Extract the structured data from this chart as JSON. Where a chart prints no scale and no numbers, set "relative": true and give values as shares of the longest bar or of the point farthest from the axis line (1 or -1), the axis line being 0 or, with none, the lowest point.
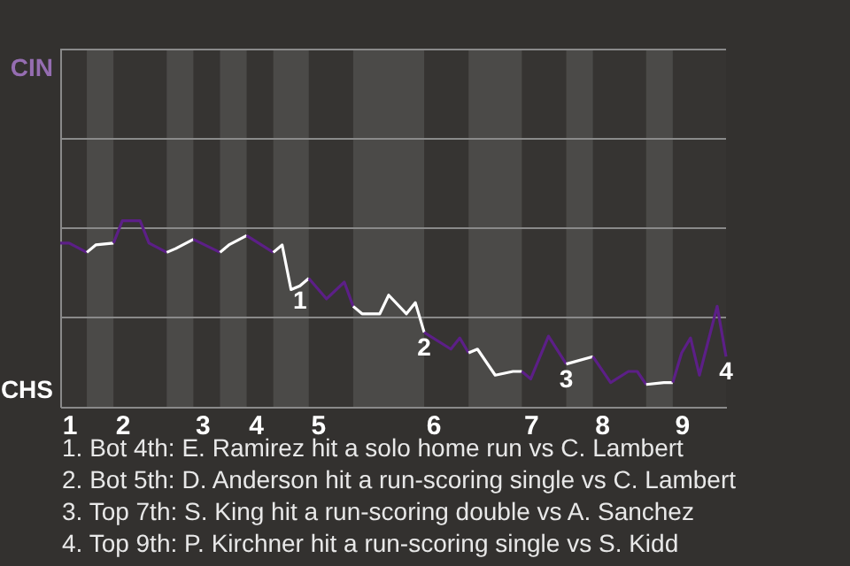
{
  "chart_data": {
    "type": "line",
    "relative": true,
    "categories": [
      null,
      "1",
      null,
      null,
      null,
      null,
      null,
      "2",
      null,
      null,
      null,
      null,
      null,
      null,
      null,
      null,
      "3",
      null,
      null,
      null,
      null,
      null,
      "4",
      null,
      null,
      null,
      null,
      null,
      null,
      "5",
      null,
      null,
      null,
      null,
      null,
      null,
      null,
      null,
      null,
      null,
      null,
      null,
      "6",
      null,
      null,
      null,
      null,
      null,
      null,
      null,
      null,
      null,
      null,
      "7",
      null,
      null,
      null,
      null,
      null,
      null,
      null,
      "8",
      null,
      null,
      null,
      null,
      null,
      null,
      null,
      null,
      "9",
      null,
      null,
      null,
      null,
      null
    ],
    "ref_lines": [
      {
        "axis": "y",
        "value": 0.48,
        "color": "#8a8a8a"
      },
      {
        "axis": "y",
        "value": 0.96,
        "color": "#8a8a8a"
      },
      {
        "axis": "y",
        "value": 1.44,
        "color": "#8a8a8a"
      },
      {
        "axis": "y",
        "value": 1.92,
        "color": "#8a8a8a"
      }
    ],
    "series": [
      {
        "color": "#5c1f87",
        "values": [
          0.88,
          0.88,
          null,
          0.83,
          null,
          null,
          null,
          null,
          null,
          null,
          null,
          null,
          null,
          null,
          null,
          null,
          null,
          null,
          null,
          null,
          null,
          null,
          null,
          null,
          null,
          null,
          null,
          null,
          null,
          null,
          null,
          null,
          null,
          null,
          null,
          null,
          null,
          null,
          null,
          null,
          null,
          null,
          null,
          null,
          null,
          null,
          null,
          null,
          null,
          null,
          null,
          null,
          null,
          null,
          null,
          null,
          null,
          null,
          null,
          null,
          null,
          null,
          null,
          null,
          null,
          null,
          null,
          null,
          null,
          null,
          null,
          null,
          null,
          null,
          null,
          null
        ]
      },
      {
        "color": "#ffffff",
        "values": [
          null,
          null,
          null,
          0.83,
          0.87,
          null,
          0.88,
          null,
          null,
          null,
          null,
          null,
          null,
          null,
          null,
          null,
          null,
          null,
          null,
          null,
          null,
          null,
          null,
          null,
          null,
          null,
          null,
          null,
          null,
          null,
          null,
          null,
          null,
          null,
          null,
          null,
          null,
          null,
          null,
          null,
          null,
          null,
          null,
          null,
          null,
          null,
          null,
          null,
          null,
          null,
          null,
          null,
          null,
          null,
          null,
          null,
          null,
          null,
          null,
          null,
          null,
          null,
          null,
          null,
          null,
          null,
          null,
          null,
          null,
          null,
          null,
          null,
          null,
          null,
          null,
          null
        ]
      },
      {
        "color": "#5c1f87",
        "values": [
          null,
          null,
          null,
          null,
          null,
          null,
          0.88,
          1,
          null,
          1,
          0.88,
          null,
          0.83,
          null,
          null,
          null,
          null,
          null,
          null,
          null,
          null,
          null,
          null,
          null,
          null,
          null,
          null,
          null,
          null,
          null,
          null,
          null,
          null,
          null,
          null,
          null,
          null,
          null,
          null,
          null,
          null,
          null,
          null,
          null,
          null,
          null,
          null,
          null,
          null,
          null,
          null,
          null,
          null,
          null,
          null,
          null,
          null,
          null,
          null,
          null,
          null,
          null,
          null,
          null,
          null,
          null,
          null,
          null,
          null,
          null,
          null,
          null,
          null,
          null,
          null,
          null
        ]
      },
      {
        "color": "#ffffff",
        "values": [
          null,
          null,
          null,
          null,
          null,
          null,
          null,
          null,
          null,
          null,
          null,
          null,
          0.83,
          0.85,
          null,
          0.9,
          null,
          null,
          null,
          null,
          null,
          null,
          null,
          null,
          null,
          null,
          null,
          null,
          null,
          null,
          null,
          null,
          null,
          null,
          null,
          null,
          null,
          null,
          null,
          null,
          null,
          null,
          null,
          null,
          null,
          null,
          null,
          null,
          null,
          null,
          null,
          null,
          null,
          null,
          null,
          null,
          null,
          null,
          null,
          null,
          null,
          null,
          null,
          null,
          null,
          null,
          null,
          null,
          null,
          null,
          null,
          null,
          null,
          null,
          null,
          null
        ]
      },
      {
        "color": "#5c1f87",
        "values": [
          null,
          null,
          null,
          null,
          null,
          null,
          null,
          null,
          null,
          null,
          null,
          null,
          null,
          null,
          null,
          0.9,
          null,
          null,
          0.83,
          null,
          null,
          null,
          null,
          null,
          null,
          null,
          null,
          null,
          null,
          null,
          null,
          null,
          null,
          null,
          null,
          null,
          null,
          null,
          null,
          null,
          null,
          null,
          null,
          null,
          null,
          null,
          null,
          null,
          null,
          null,
          null,
          null,
          null,
          null,
          null,
          null,
          null,
          null,
          null,
          null,
          null,
          null,
          null,
          null,
          null,
          null,
          null,
          null,
          null,
          null,
          null,
          null,
          null,
          null,
          null,
          null
        ]
      },
      {
        "color": "#ffffff",
        "values": [
          null,
          null,
          null,
          null,
          null,
          null,
          null,
          null,
          null,
          null,
          null,
          null,
          null,
          null,
          null,
          null,
          null,
          null,
          0.83,
          0.87,
          null,
          0.92,
          null,
          null,
          null,
          null,
          null,
          null,
          null,
          null,
          null,
          null,
          null,
          null,
          null,
          null,
          null,
          null,
          null,
          null,
          null,
          null,
          null,
          null,
          null,
          null,
          null,
          null,
          null,
          null,
          null,
          null,
          null,
          null,
          null,
          null,
          null,
          null,
          null,
          null,
          null,
          null,
          null,
          null,
          null,
          null,
          null,
          null,
          null,
          null,
          null,
          null,
          null,
          null,
          null,
          null
        ]
      },
      {
        "color": "#5c1f87",
        "values": [
          null,
          null,
          null,
          null,
          null,
          null,
          null,
          null,
          null,
          null,
          null,
          null,
          null,
          null,
          null,
          null,
          null,
          null,
          null,
          null,
          null,
          0.92,
          null,
          null,
          0.83,
          null,
          null,
          null,
          null,
          null,
          null,
          null,
          null,
          null,
          null,
          null,
          null,
          null,
          null,
          null,
          null,
          null,
          null,
          null,
          null,
          null,
          null,
          null,
          null,
          null,
          null,
          null,
          null,
          null,
          null,
          null,
          null,
          null,
          null,
          null,
          null,
          null,
          null,
          null,
          null,
          null,
          null,
          null,
          null,
          null,
          null,
          null,
          null,
          null,
          null,
          null
        ]
      },
      {
        "color": "#ffffff",
        "values": [
          null,
          null,
          null,
          null,
          null,
          null,
          null,
          null,
          null,
          null,
          null,
          null,
          null,
          null,
          null,
          null,
          null,
          null,
          null,
          null,
          null,
          null,
          null,
          null,
          0.83,
          0.87,
          0.63,
          0.65,
          0.69,
          null,
          null,
          null,
          null,
          null,
          null,
          null,
          null,
          null,
          null,
          null,
          null,
          null,
          null,
          null,
          null,
          null,
          null,
          null,
          null,
          null,
          null,
          null,
          null,
          null,
          null,
          null,
          null,
          null,
          null,
          null,
          null,
          null,
          null,
          null,
          null,
          null,
          null,
          null,
          null,
          null,
          null,
          null,
          null,
          null,
          null,
          null
        ]
      },
      {
        "color": "#5c1f87",
        "values": [
          null,
          null,
          null,
          null,
          null,
          null,
          null,
          null,
          null,
          null,
          null,
          null,
          null,
          null,
          null,
          null,
          null,
          null,
          null,
          null,
          null,
          null,
          null,
          null,
          null,
          null,
          null,
          null,
          0.69,
          null,
          0.58,
          null,
          0.67,
          0.54,
          null,
          null,
          null,
          null,
          null,
          null,
          null,
          null,
          null,
          null,
          null,
          null,
          null,
          null,
          null,
          null,
          null,
          null,
          null,
          null,
          null,
          null,
          null,
          null,
          null,
          null,
          null,
          null,
          null,
          null,
          null,
          null,
          null,
          null,
          null,
          null,
          null,
          null,
          null,
          null,
          null,
          null
        ]
      },
      {
        "color": "#ffffff",
        "values": [
          null,
          null,
          null,
          null,
          null,
          null,
          null,
          null,
          null,
          null,
          null,
          null,
          null,
          null,
          null,
          null,
          null,
          null,
          null,
          null,
          null,
          null,
          null,
          null,
          null,
          null,
          null,
          null,
          null,
          null,
          null,
          null,
          null,
          0.54,
          0.5,
          null,
          0.5,
          0.6,
          null,
          0.5,
          0.56,
          0.4,
          null,
          null,
          null,
          null,
          null,
          null,
          null,
          null,
          null,
          null,
          null,
          null,
          null,
          null,
          null,
          null,
          null,
          null,
          null,
          null,
          null,
          null,
          null,
          null,
          null,
          null,
          null,
          null,
          null,
          null,
          null,
          null,
          null,
          null
        ]
      },
      {
        "color": "#5c1f87",
        "values": [
          null,
          null,
          null,
          null,
          null,
          null,
          null,
          null,
          null,
          null,
          null,
          null,
          null,
          null,
          null,
          null,
          null,
          null,
          null,
          null,
          null,
          null,
          null,
          null,
          null,
          null,
          null,
          null,
          null,
          null,
          null,
          null,
          null,
          null,
          null,
          null,
          null,
          null,
          null,
          null,
          null,
          0.4,
          null,
          null,
          0.31,
          0.37,
          0.29,
          null,
          null,
          null,
          null,
          null,
          null,
          null,
          null,
          null,
          null,
          null,
          null,
          null,
          null,
          null,
          null,
          null,
          null,
          null,
          null,
          null,
          null,
          null,
          null,
          null,
          null,
          null,
          null,
          null
        ]
      },
      {
        "color": "#ffffff",
        "values": [
          null,
          null,
          null,
          null,
          null,
          null,
          null,
          null,
          null,
          null,
          null,
          null,
          null,
          null,
          null,
          null,
          null,
          null,
          null,
          null,
          null,
          null,
          null,
          null,
          null,
          null,
          null,
          null,
          null,
          null,
          null,
          null,
          null,
          null,
          null,
          null,
          null,
          null,
          null,
          null,
          null,
          null,
          null,
          null,
          null,
          null,
          0.29,
          0.31,
          null,
          0.17,
          null,
          0.19,
          0.19,
          null,
          null,
          null,
          null,
          null,
          null,
          null,
          null,
          null,
          null,
          null,
          null,
          null,
          null,
          null,
          null,
          null,
          null,
          null,
          null,
          null,
          null,
          null
        ]
      },
      {
        "color": "#5c1f87",
        "values": [
          null,
          null,
          null,
          null,
          null,
          null,
          null,
          null,
          null,
          null,
          null,
          null,
          null,
          null,
          null,
          null,
          null,
          null,
          null,
          null,
          null,
          null,
          null,
          null,
          null,
          null,
          null,
          null,
          null,
          null,
          null,
          null,
          null,
          null,
          null,
          null,
          null,
          null,
          null,
          null,
          null,
          null,
          null,
          null,
          null,
          null,
          null,
          null,
          null,
          null,
          null,
          null,
          0.19,
          0.15,
          null,
          0.38,
          null,
          0.23,
          null,
          null,
          null,
          null,
          null,
          null,
          null,
          null,
          null,
          null,
          null,
          null,
          null,
          null,
          null,
          null,
          null,
          null
        ]
      },
      {
        "color": "#ffffff",
        "values": [
          null,
          null,
          null,
          null,
          null,
          null,
          null,
          null,
          null,
          null,
          null,
          null,
          null,
          null,
          null,
          null,
          null,
          null,
          null,
          null,
          null,
          null,
          null,
          null,
          null,
          null,
          null,
          null,
          null,
          null,
          null,
          null,
          null,
          null,
          null,
          null,
          null,
          null,
          null,
          null,
          null,
          null,
          null,
          null,
          null,
          null,
          null,
          null,
          null,
          null,
          null,
          null,
          null,
          null,
          null,
          null,
          null,
          0.23,
          null,
          null,
          0.27,
          null,
          null,
          null,
          null,
          null,
          null,
          null,
          null,
          null,
          null,
          null,
          null,
          null,
          null,
          null
        ]
      },
      {
        "color": "#5c1f87",
        "values": [
          null,
          null,
          null,
          null,
          null,
          null,
          null,
          null,
          null,
          null,
          null,
          null,
          null,
          null,
          null,
          null,
          null,
          null,
          null,
          null,
          null,
          null,
          null,
          null,
          null,
          null,
          null,
          null,
          null,
          null,
          null,
          null,
          null,
          null,
          null,
          null,
          null,
          null,
          null,
          null,
          null,
          null,
          null,
          null,
          null,
          null,
          null,
          null,
          null,
          null,
          null,
          null,
          null,
          null,
          null,
          null,
          null,
          null,
          null,
          null,
          0.27,
          null,
          0.13,
          null,
          0.19,
          0.19,
          0.12,
          null,
          null,
          null,
          null,
          null,
          null,
          null,
          null,
          null
        ]
      },
      {
        "color": "#ffffff",
        "values": [
          null,
          null,
          null,
          null,
          null,
          null,
          null,
          null,
          null,
          null,
          null,
          null,
          null,
          null,
          null,
          null,
          null,
          null,
          null,
          null,
          null,
          null,
          null,
          null,
          null,
          null,
          null,
          null,
          null,
          null,
          null,
          null,
          null,
          null,
          null,
          null,
          null,
          null,
          null,
          null,
          null,
          null,
          null,
          null,
          null,
          null,
          null,
          null,
          null,
          null,
          null,
          null,
          null,
          null,
          null,
          null,
          null,
          null,
          null,
          null,
          null,
          null,
          null,
          null,
          null,
          null,
          0.12,
          null,
          0.13,
          0.13,
          null,
          null,
          null,
          null,
          null,
          null
        ]
      },
      {
        "color": "#5c1f87",
        "values": [
          null,
          null,
          null,
          null,
          null,
          null,
          null,
          null,
          null,
          null,
          null,
          null,
          null,
          null,
          null,
          null,
          null,
          null,
          null,
          null,
          null,
          null,
          null,
          null,
          null,
          null,
          null,
          null,
          null,
          null,
          null,
          null,
          null,
          null,
          null,
          null,
          null,
          null,
          null,
          null,
          null,
          null,
          null,
          null,
          null,
          null,
          null,
          null,
          null,
          null,
          null,
          null,
          null,
          null,
          null,
          null,
          null,
          null,
          null,
          null,
          null,
          null,
          null,
          null,
          null,
          null,
          null,
          null,
          null,
          0.13,
          0.29,
          0.37,
          0.17,
          null,
          0.54,
          0.27
        ]
      }
    ],
    "annotations": [
      {
        "text": "1",
        "y": 0.65
      },
      {
        "text": "2",
        "y": 0.4
      },
      {
        "text": "3",
        "y": 0.23
      },
      {
        "text": "4",
        "y": 0.27
      },
      "CIN",
      "CHS",
      "1. Bot 4th: E. Ramirez hit a solo home run vs C. Lambert",
      "2. Bot 5th: D. Anderson hit a run-scoring single vs C. Lambert",
      "3. Top 7th: S. King hit a run-scoring double vs A. Sanchez",
      "4. Top 9th: P. Kirchner hit a run-scoring single vs S. Kidd"
    ]
  }
}
